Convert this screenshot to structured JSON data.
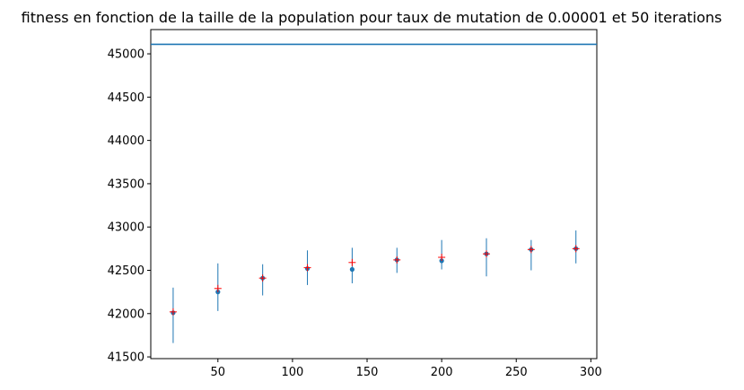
{
  "chart_data": {
    "type": "scatter",
    "title": "fitness en fonction de la taille de la population pour taux de mutation de 0.00001 et 50 iterations",
    "xlabel": "",
    "ylabel": "",
    "xlim": [
      5,
      304
    ],
    "ylim": [
      41480,
      45280
    ],
    "xticks": [
      50,
      100,
      150,
      200,
      250,
      300
    ],
    "yticks": [
      41500,
      42000,
      42500,
      43000,
      43500,
      44000,
      44500,
      45000
    ],
    "reference_line": {
      "y": 45110,
      "color": "#1f77b4"
    },
    "series": [
      {
        "marker": "circle",
        "color": "#1f77b4",
        "points": [
          {
            "x": 20,
            "y": 42010,
            "ylow": 41660,
            "yhigh": 42300
          },
          {
            "x": 50,
            "y": 42250,
            "ylow": 42030,
            "yhigh": 42580
          },
          {
            "x": 80,
            "y": 42410,
            "ylow": 42210,
            "yhigh": 42570
          },
          {
            "x": 110,
            "y": 42520,
            "ylow": 42330,
            "yhigh": 42730
          },
          {
            "x": 140,
            "y": 42510,
            "ylow": 42350,
            "yhigh": 42760
          },
          {
            "x": 170,
            "y": 42620,
            "ylow": 42470,
            "yhigh": 42760
          },
          {
            "x": 200,
            "y": 42610,
            "ylow": 42510,
            "yhigh": 42850
          },
          {
            "x": 230,
            "y": 42690,
            "ylow": 42430,
            "yhigh": 42870
          },
          {
            "x": 260,
            "y": 42740,
            "ylow": 42500,
            "yhigh": 42850
          },
          {
            "x": 290,
            "y": 42750,
            "ylow": 42580,
            "yhigh": 42960
          }
        ]
      },
      {
        "marker": "plus",
        "color": "#ff0000",
        "points": [
          {
            "x": 20,
            "y": 42020
          },
          {
            "x": 50,
            "y": 42290
          },
          {
            "x": 80,
            "y": 42410
          },
          {
            "x": 110,
            "y": 42530
          },
          {
            "x": 140,
            "y": 42590
          },
          {
            "x": 170,
            "y": 42620
          },
          {
            "x": 200,
            "y": 42650
          },
          {
            "x": 230,
            "y": 42690
          },
          {
            "x": 260,
            "y": 42740
          },
          {
            "x": 290,
            "y": 42750
          }
        ]
      }
    ]
  }
}
